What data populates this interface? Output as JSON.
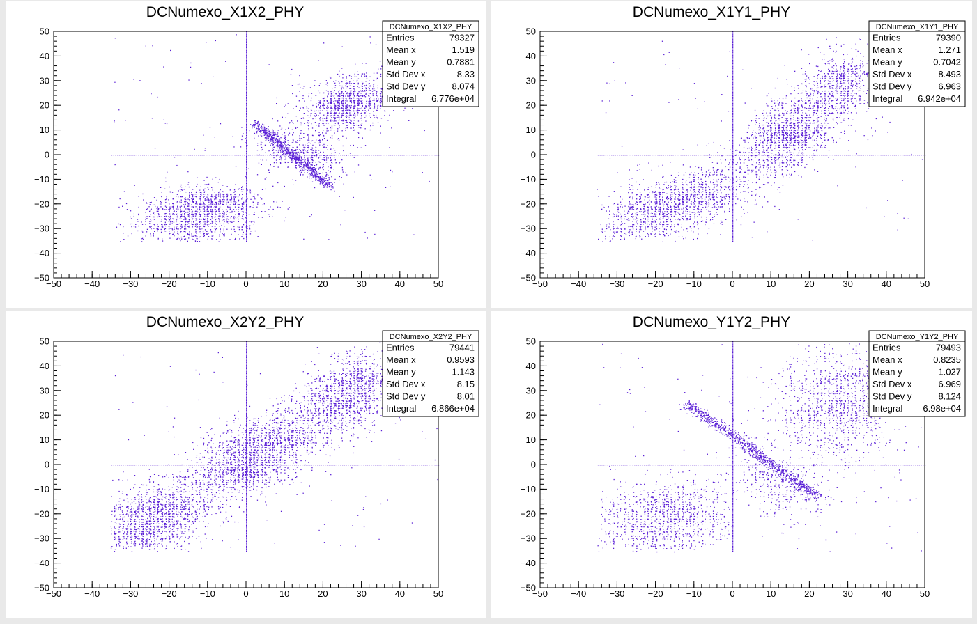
{
  "window": {
    "background": "#e9e9e9",
    "marker_color": "#5a1fd6"
  },
  "chart_data": [
    {
      "type": "scatter",
      "title": "DCNumexo_X1X2_PHY",
      "xlim": [
        -50,
        50
      ],
      "ylim": [
        -50,
        50
      ],
      "xticks": [
        -50,
        -40,
        -30,
        -20,
        -10,
        0,
        10,
        20,
        30,
        40,
        50
      ],
      "yticks": [
        -50,
        -40,
        -30,
        -20,
        -10,
        0,
        10,
        20,
        30,
        40,
        50
      ],
      "grid": false,
      "legend": "top-right",
      "stats": {
        "name": "DCNumexo_X1X2_PHY",
        "rows": [
          {
            "label": "Entries",
            "value": "79327"
          },
          {
            "label": "Mean x",
            "value": "1.519"
          },
          {
            "label": "Mean y",
            "value": "0.7881"
          },
          {
            "label": "Std Dev x",
            "value": "8.33"
          },
          {
            "label": "Std Dev y",
            "value": "8.074"
          },
          {
            "label": "Integral",
            "value": "6.776e+04"
          }
        ]
      },
      "structure": {
        "clusters": [
          {
            "cx": -12,
            "cy": -24,
            "sx": 8,
            "sy": 6,
            "corr": 0.2,
            "n": 1300,
            "xmin": -35,
            "ymin": -35
          },
          {
            "cx": 26,
            "cy": 20,
            "sx": 6,
            "sy": 6,
            "corr": 0.35,
            "n": 1100
          },
          {
            "cx": 14,
            "cy": 0,
            "sx": 6,
            "sy": 5,
            "corr": -0.6,
            "n": 500
          }
        ],
        "lines": [
          {
            "x0": 2,
            "y0": 13,
            "x1": 22,
            "y1": -13,
            "n": 700,
            "w": 1.5
          }
        ],
        "crosshair": {
          "hx": [
            -35,
            50
          ],
          "vy": [
            -35,
            50
          ]
        },
        "noise": 120
      }
    },
    {
      "type": "scatter",
      "title": "DCNumexo_X1Y1_PHY",
      "xlim": [
        -50,
        50
      ],
      "ylim": [
        -50,
        50
      ],
      "xticks": [
        -50,
        -40,
        -30,
        -20,
        -10,
        0,
        10,
        20,
        30,
        40,
        50
      ],
      "yticks": [
        -50,
        -40,
        -30,
        -20,
        -10,
        0,
        10,
        20,
        30,
        40,
        50
      ],
      "grid": false,
      "legend": "top-right",
      "stats": {
        "name": "DCNumexo_X1Y1_PHY",
        "rows": [
          {
            "label": "Entries",
            "value": "79390"
          },
          {
            "label": "Mean x",
            "value": "1.271"
          },
          {
            "label": "Mean y",
            "value": "0.7042"
          },
          {
            "label": "Std Dev x",
            "value": "8.493"
          },
          {
            "label": "Std Dev y",
            "value": "6.963"
          },
          {
            "label": "Integral",
            "value": "6.942e+04"
          }
        ]
      },
      "structure": {
        "clusters": [
          {
            "cx": -15,
            "cy": -20,
            "sx": 10,
            "sy": 8,
            "corr": 0.6,
            "n": 1500,
            "xmin": -35,
            "ymin": -35
          },
          {
            "cx": 14,
            "cy": 8,
            "sx": 6,
            "sy": 8,
            "corr": 0.4,
            "n": 1300
          },
          {
            "cx": 28,
            "cy": 28,
            "sx": 5,
            "sy": 7,
            "corr": 0.3,
            "n": 700
          }
        ],
        "lines": [],
        "crosshair": {
          "hx": [
            -35,
            50
          ],
          "vy": [
            -35,
            50
          ]
        },
        "noise": 100
      }
    },
    {
      "type": "scatter",
      "title": "DCNumexo_X2Y2_PHY",
      "xlim": [
        -50,
        50
      ],
      "ylim": [
        -50,
        50
      ],
      "xticks": [
        -50,
        -40,
        -30,
        -20,
        -10,
        0,
        10,
        20,
        30,
        40,
        50
      ],
      "yticks": [
        -50,
        -40,
        -30,
        -20,
        -10,
        0,
        10,
        20,
        30,
        40,
        50
      ],
      "grid": false,
      "legend": "top-right",
      "stats": {
        "name": "DCNumexo_X2Y2_PHY",
        "rows": [
          {
            "label": "Entries",
            "value": "79441"
          },
          {
            "label": "Mean x",
            "value": "0.9593"
          },
          {
            "label": "Mean y",
            "value": "1.143"
          },
          {
            "label": "Std Dev x",
            "value": "8.15"
          },
          {
            "label": "Std Dev y",
            "value": "8.01"
          },
          {
            "label": "Integral",
            "value": "6.866e+04"
          }
        ]
      },
      "structure": {
        "clusters": [
          {
            "cx": -24,
            "cy": -22,
            "sx": 7,
            "sy": 8,
            "corr": 0.4,
            "n": 1400,
            "xmin": -35,
            "ymin": -35
          },
          {
            "cx": 2,
            "cy": 4,
            "sx": 8,
            "sy": 9,
            "corr": 0.55,
            "n": 1700
          },
          {
            "cx": 26,
            "cy": 28,
            "sx": 7,
            "sy": 9,
            "corr": 0.5,
            "n": 1300
          }
        ],
        "lines": [],
        "crosshair": {
          "hx": [
            -35,
            50
          ],
          "vy": [
            -35,
            50
          ]
        },
        "noise": 100
      }
    },
    {
      "type": "scatter",
      "title": "DCNumexo_Y1Y2_PHY",
      "xlim": [
        -50,
        50
      ],
      "ylim": [
        -50,
        50
      ],
      "xticks": [
        -50,
        -40,
        -30,
        -20,
        -10,
        0,
        10,
        20,
        30,
        40,
        50
      ],
      "yticks": [
        -50,
        -40,
        -30,
        -20,
        -10,
        0,
        10,
        20,
        30,
        40,
        50
      ],
      "grid": false,
      "legend": "top-right",
      "stats": {
        "name": "DCNumexo_Y1Y2_PHY",
        "rows": [
          {
            "label": "Entries",
            "value": "79493"
          },
          {
            "label": "Mean x",
            "value": "0.8235"
          },
          {
            "label": "Mean y",
            "value": "1.027"
          },
          {
            "label": "Std Dev x",
            "value": "6.969"
          },
          {
            "label": "Std Dev y",
            "value": "8.124"
          },
          {
            "label": "Integral",
            "value": "6.98e+04"
          }
        ]
      },
      "structure": {
        "clusters": [
          {
            "cx": -18,
            "cy": -22,
            "sx": 9,
            "sy": 8,
            "corr": 0.1,
            "n": 1100,
            "xmin": -35,
            "ymin": -35,
            "xmax": 0
          },
          {
            "cx": 28,
            "cy": 25,
            "sx": 8,
            "sy": 12,
            "corr": 0.1,
            "n": 1100
          },
          {
            "cx": 12,
            "cy": -8,
            "sx": 6,
            "sy": 8,
            "corr": -0.3,
            "n": 350
          }
        ],
        "lines": [
          {
            "x0": -12,
            "y0": 25,
            "x1": 22,
            "y1": -13,
            "n": 900,
            "w": 1.8
          }
        ],
        "crosshair": {
          "hx": [
            -35,
            50
          ],
          "vy": [
            -35,
            50
          ]
        },
        "noise": 110
      }
    }
  ]
}
